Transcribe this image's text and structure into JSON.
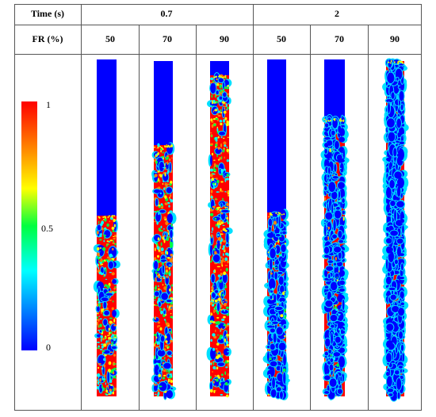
{
  "header": {
    "time_label": "Time (s)",
    "times": [
      "0.7",
      "2"
    ]
  },
  "subheader": {
    "fr_label": "FR (%)",
    "frs": [
      "50",
      "70",
      "90",
      "50",
      "70",
      "90"
    ]
  },
  "colorbar": {
    "labels": [
      "1",
      "0.5",
      "0"
    ]
  }
}
